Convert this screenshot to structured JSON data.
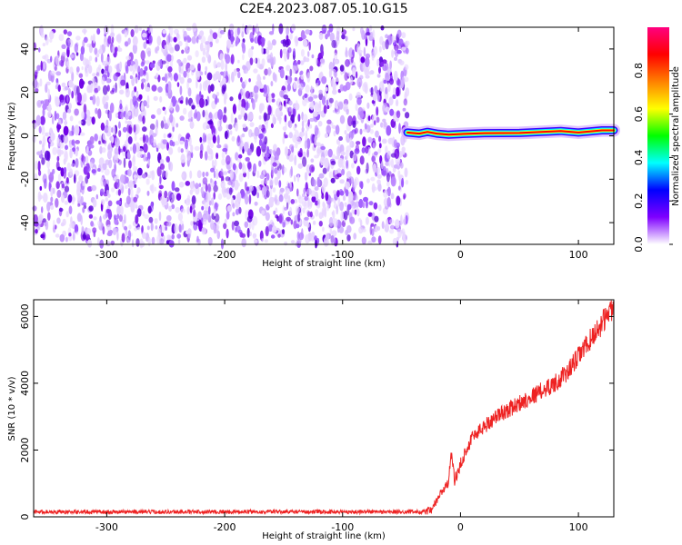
{
  "title": "C2E4.2023.087.05.10.G15",
  "chart_data": [
    {
      "type": "heatmap",
      "xlabel": "Height of straight line (km)",
      "ylabel": "Frequency (Hz)",
      "xlim": [
        -362,
        130
      ],
      "ylim": [
        -50,
        50
      ],
      "x_ticks": [
        -300,
        -200,
        -100,
        0,
        100
      ],
      "y_ticks": [
        -40,
        -20,
        0,
        20,
        40
      ],
      "noise_region_x": [
        -362,
        -45
      ],
      "signal_track": [
        {
          "x": -45,
          "y": 1.5
        },
        {
          "x": -35,
          "y": 1.0
        },
        {
          "x": -28,
          "y": 1.8
        },
        {
          "x": -20,
          "y": 1.0
        },
        {
          "x": -10,
          "y": 0.5
        },
        {
          "x": 0,
          "y": 0.8
        },
        {
          "x": 20,
          "y": 1.2
        },
        {
          "x": 50,
          "y": 1.3
        },
        {
          "x": 85,
          "y": 2.2
        },
        {
          "x": 100,
          "y": 1.5
        },
        {
          "x": 120,
          "y": 2.5
        },
        {
          "x": 130,
          "y": 2.5
        }
      ],
      "colorbar": {
        "label": "Normalized spectral amplitude",
        "range": [
          0,
          1
        ],
        "ticks": [
          0.0,
          0.2,
          0.4,
          0.6,
          0.8
        ],
        "tick_labels": [
          "0.0",
          "0.2",
          "0.4",
          "0.6",
          "0.8"
        ],
        "colormap": [
          "#ffffff",
          "#7f00ff",
          "#0000ff",
          "#00ffff",
          "#00ff00",
          "#ffff00",
          "#ff8000",
          "#ff0000",
          "#ff0080"
        ]
      },
      "colors": {
        "noise": "#7f00ff",
        "signal_core": "#ff0000",
        "signal_halo": "#00ffff"
      }
    },
    {
      "type": "line",
      "xlabel": "Height of straight line (km)",
      "ylabel": "SNR (10 * v/v)",
      "xlim": [
        -362,
        130
      ],
      "ylim": [
        0,
        6500
      ],
      "x_ticks": [
        -300,
        -200,
        -100,
        0,
        100
      ],
      "y_ticks": [
        0,
        2000,
        4000,
        6000
      ],
      "series": [
        {
          "color": "#ee2222",
          "x": [
            -362,
            -300,
            -200,
            -100,
            -35,
            -25,
            -20,
            -15,
            -10,
            -8,
            -5,
            -2,
            0,
            5,
            10,
            20,
            30,
            40,
            50,
            60,
            70,
            80,
            90,
            100,
            110,
            120,
            125,
            130
          ],
          "y": [
            150,
            150,
            150,
            150,
            150,
            170,
            500,
            800,
            1000,
            2000,
            1100,
            1300,
            1600,
            2000,
            2400,
            2700,
            3000,
            3200,
            3400,
            3600,
            3800,
            4000,
            4300,
            4800,
            5300,
            5800,
            6100,
            6300
          ]
        }
      ]
    }
  ]
}
